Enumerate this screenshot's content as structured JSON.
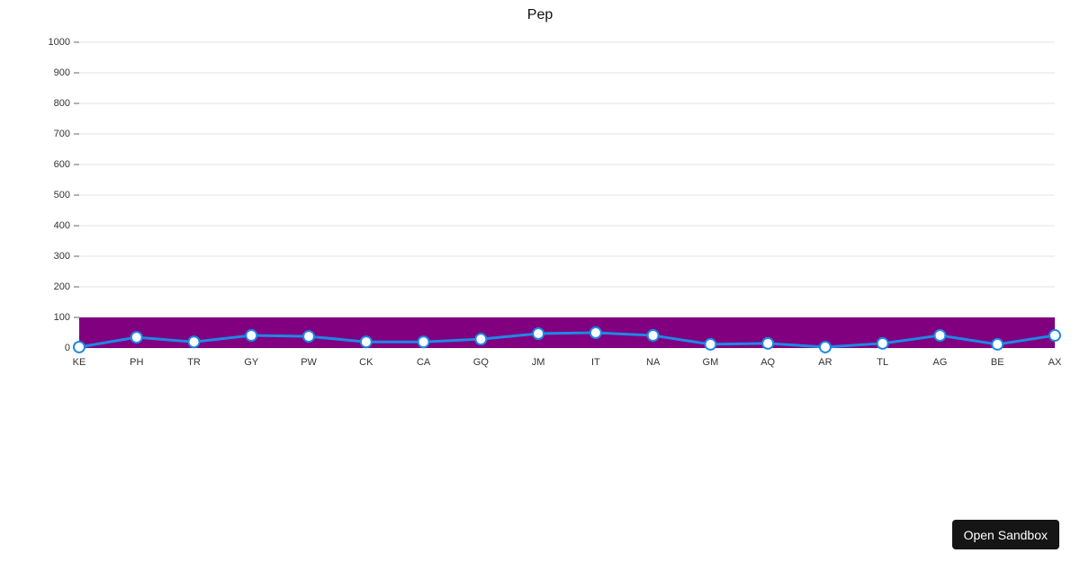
{
  "chart_data": {
    "type": "line",
    "title": "Pep",
    "categories": [
      "KE",
      "PH",
      "TR",
      "GY",
      "PW",
      "CK",
      "CA",
      "GQ",
      "JM",
      "IT",
      "NA",
      "GM",
      "AQ",
      "AR",
      "TL",
      "AG",
      "BE",
      "AX"
    ],
    "values": [
      3,
      35,
      20,
      41,
      38,
      20,
      20,
      29,
      47,
      50,
      41,
      12,
      15,
      3,
      15,
      41,
      12,
      41
    ],
    "color": "#1e88e5",
    "ylim": [
      0,
      1000
    ],
    "yticks": [
      0,
      100,
      200,
      300,
      400,
      500,
      600,
      700,
      800,
      900,
      1000
    ],
    "grid": true,
    "band": {
      "from": 0,
      "to": 100,
      "color": "#800080"
    }
  },
  "button": "Open Sandbox"
}
